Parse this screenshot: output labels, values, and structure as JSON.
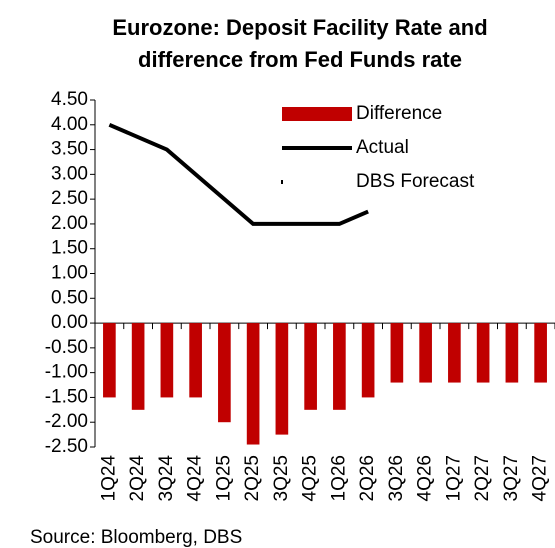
{
  "chart_data": {
    "type": "bar_line",
    "title": [
      "Eurozone: Deposit Facility Rate and",
      "difference from Fed Funds rate"
    ],
    "source": "Source: Bloomberg, DBS",
    "categories": [
      "1Q24",
      "2Q24",
      "3Q24",
      "4Q24",
      "1Q25",
      "2Q25",
      "3Q25",
      "4Q25",
      "1Q26",
      "2Q26",
      "3Q26",
      "4Q26",
      "1Q27",
      "2Q27",
      "3Q27",
      "4Q27"
    ],
    "series": [
      {
        "name": "Difference",
        "type": "bar",
        "color": "#c00000",
        "values": [
          -1.5,
          -1.75,
          -1.5,
          -1.5,
          -2.0,
          -2.45,
          -2.25,
          -1.75,
          -1.75,
          -1.5,
          -1.2,
          -1.2,
          -1.2,
          -1.2,
          -1.2,
          -1.2
        ]
      },
      {
        "name": "Actual",
        "type": "line",
        "color": "#000000",
        "values": [
          4.0,
          3.75,
          3.5,
          3.0,
          2.5,
          2.0,
          2.0,
          2.0,
          2.0,
          2.25,
          null,
          null,
          null,
          null,
          null,
          null
        ]
      },
      {
        "name": "DBS Forecast",
        "type": "line",
        "color": "#000000",
        "dotted": true,
        "values": [
          null,
          null,
          null,
          null,
          null,
          null,
          null,
          null,
          null,
          null,
          null,
          null,
          null,
          null,
          null,
          null
        ]
      }
    ],
    "ylim": [
      -2.5,
      4.5
    ],
    "yticks": [
      {
        "value": 4.5,
        "label": "4.50"
      },
      {
        "value": 4,
        "label": "4.00"
      },
      {
        "value": 3.5,
        "label": "3.50"
      },
      {
        "value": 3,
        "label": "3.00"
      },
      {
        "value": 2.5,
        "label": "2.50"
      },
      {
        "value": 2,
        "label": "2.00"
      },
      {
        "value": 1.5,
        "label": "1.50"
      },
      {
        "value": 1,
        "label": "1.00"
      },
      {
        "value": 0.5,
        "label": "0.50"
      },
      {
        "value": 0,
        "label": "0.00"
      },
      {
        "value": -0.5,
        "label": "-0.50"
      },
      {
        "value": -1,
        "label": "-1.00"
      },
      {
        "value": -1.5,
        "label": "-1.50"
      },
      {
        "value": -2,
        "label": "-2.00"
      },
      {
        "value": -2.5,
        "label": "-2.50"
      }
    ],
    "grid": false
  }
}
